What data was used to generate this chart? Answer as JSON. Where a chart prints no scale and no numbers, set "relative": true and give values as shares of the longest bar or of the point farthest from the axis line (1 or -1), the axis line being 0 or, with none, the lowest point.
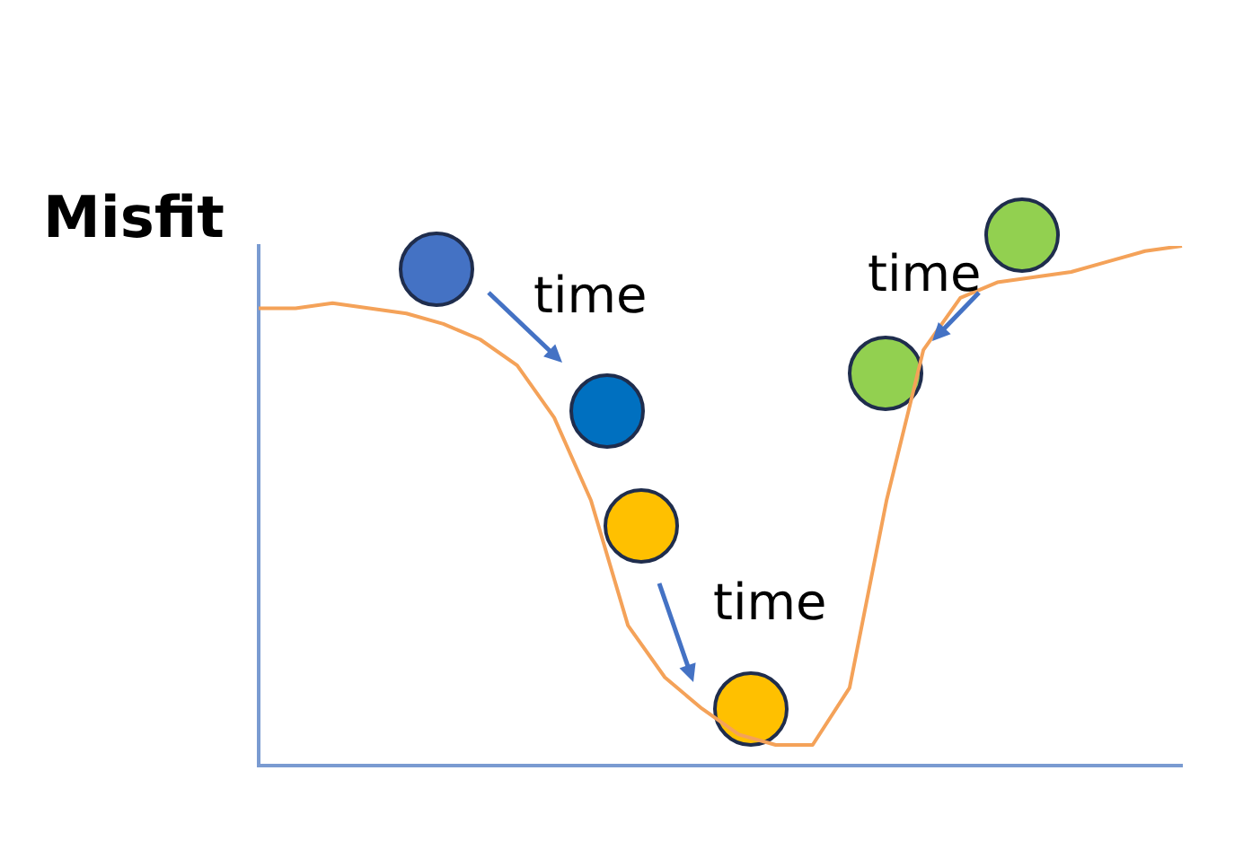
{
  "chart_data": {
    "type": "line",
    "relative": true,
    "ylabel": "Misfit",
    "legend": false,
    "grid": false,
    "categories": [
      null,
      null,
      null,
      null,
      null,
      null,
      null,
      null,
      null,
      null,
      null,
      null,
      null,
      null,
      null,
      null,
      null,
      null,
      null,
      null,
      null,
      null,
      null,
      null,
      null,
      null
    ],
    "annotations": [
      "time",
      "time",
      "time"
    ],
    "series": [
      {
        "color": "#f4a259",
        "marker": "none",
        "values": [
          0.88,
          0.88,
          0.89,
          0.88,
          0.87,
          0.85,
          0.82,
          0.77,
          0.67,
          0.51,
          0.27,
          0.17,
          0.11,
          0.06,
          0.04,
          0.04,
          0.15,
          0.51,
          0.8,
          0.9,
          0.93,
          0.94,
          0.95,
          0.97,
          0.99,
          1
        ]
      }
    ]
  }
}
